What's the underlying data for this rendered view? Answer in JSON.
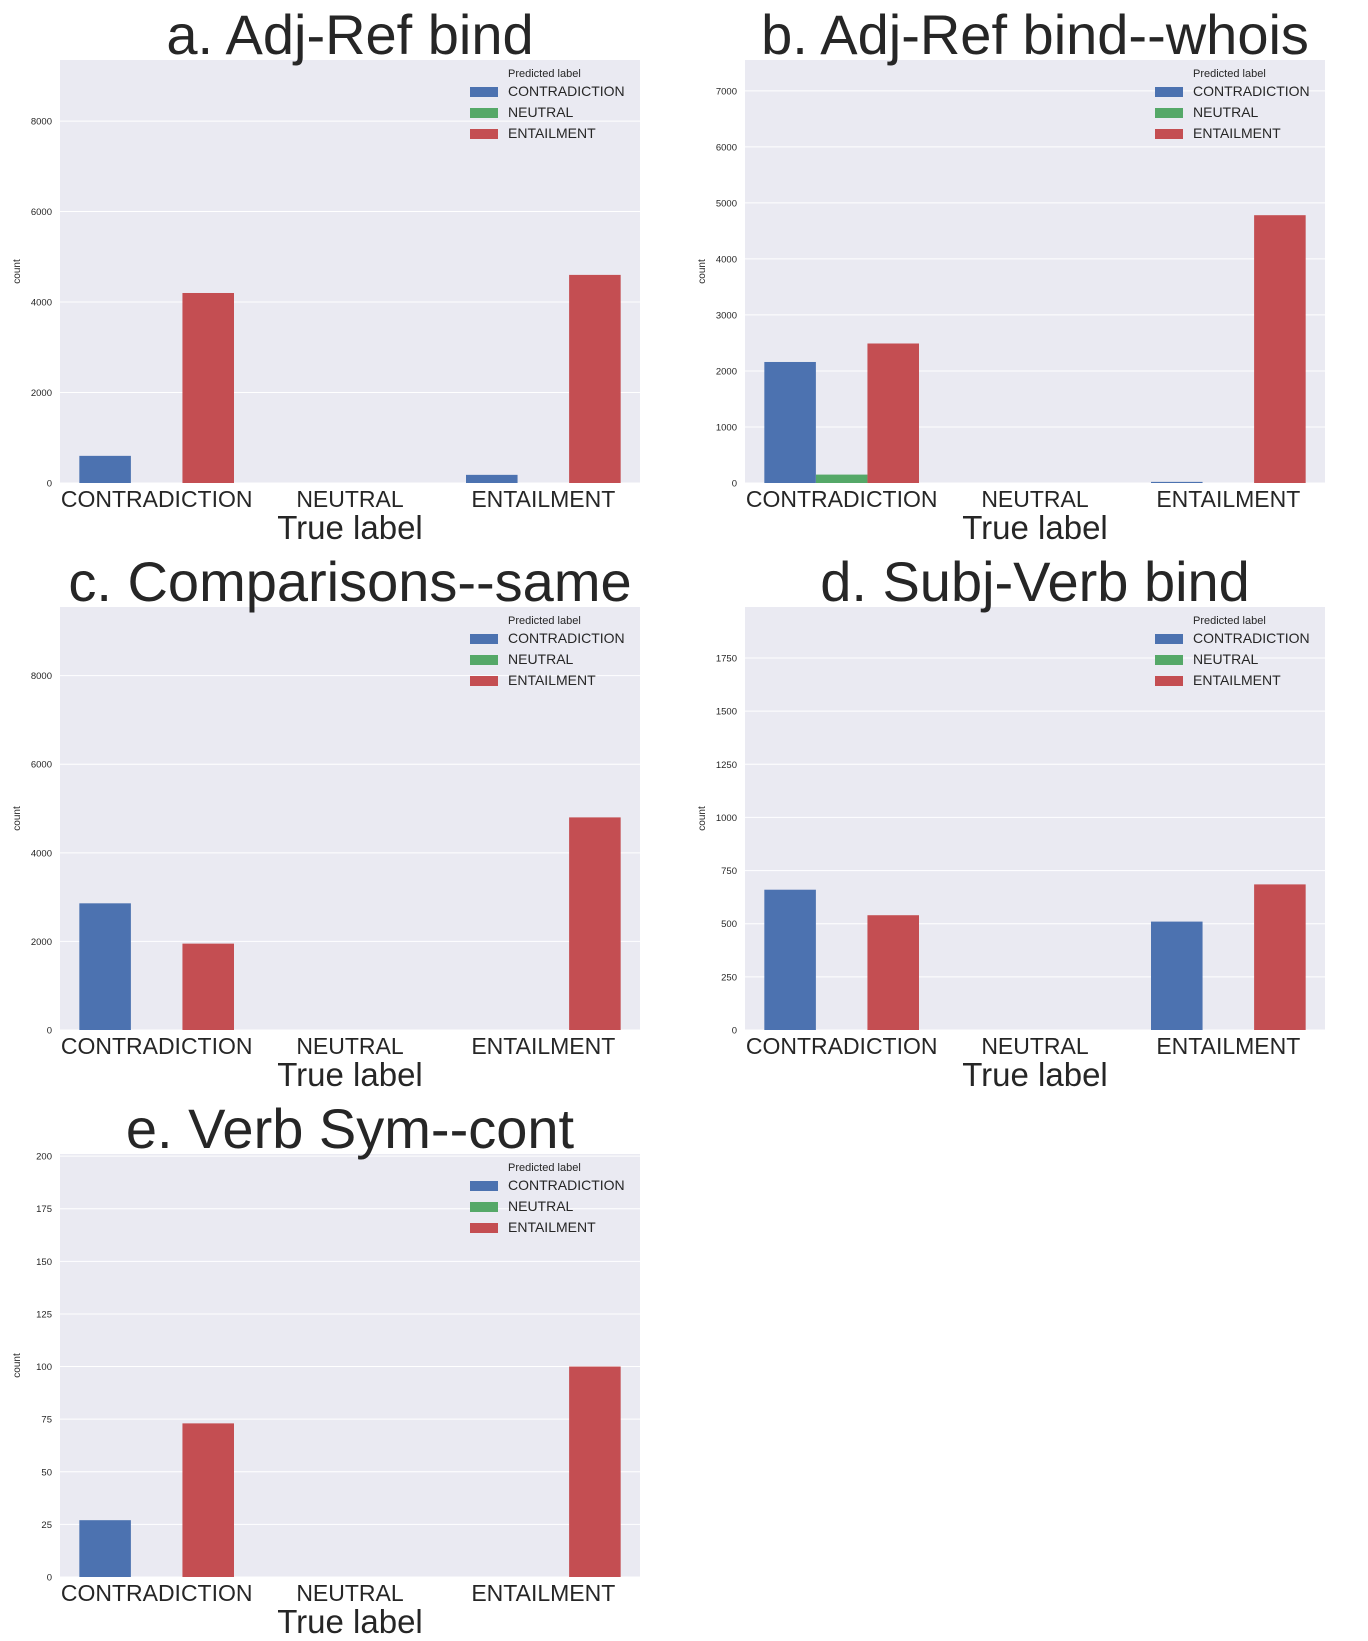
{
  "figure": {
    "colors": {
      "CONTRADICTION": "#4c72b0",
      "NEUTRAL": "#55a868",
      "ENTAILMENT": "#c44e52",
      "panel_bg": "#eaeaf2",
      "grid": "#ffffff"
    }
  },
  "chart_data": [
    {
      "type": "bar",
      "title": "a. Adj-Ref bind",
      "xlabel": "True label",
      "ylabel": "count",
      "categories": [
        "CONTRADICTION",
        "NEUTRAL",
        "ENTAILMENT"
      ],
      "legend_title": "Predicted label",
      "legend_position": "top-right",
      "grid": true,
      "ylim": [
        0,
        9350
      ],
      "yticks": [
        0,
        2000,
        4000,
        6000,
        8000
      ],
      "series": [
        {
          "name": "CONTRADICTION",
          "values": [
            600,
            0,
            180
          ]
        },
        {
          "name": "NEUTRAL",
          "values": [
            0,
            0,
            0
          ]
        },
        {
          "name": "ENTAILMENT",
          "values": [
            4200,
            0,
            4600
          ]
        }
      ]
    },
    {
      "type": "bar",
      "title": "b. Adj-Ref bind--whois",
      "xlabel": "True label",
      "ylabel": "count",
      "categories": [
        "CONTRADICTION",
        "NEUTRAL",
        "ENTAILMENT"
      ],
      "legend_title": "Predicted label",
      "legend_position": "top-right",
      "grid": true,
      "ylim": [
        0,
        7550
      ],
      "yticks": [
        0,
        1000,
        2000,
        3000,
        4000,
        5000,
        6000,
        7000
      ],
      "series": [
        {
          "name": "CONTRADICTION",
          "values": [
            2160,
            0,
            20
          ]
        },
        {
          "name": "NEUTRAL",
          "values": [
            150,
            0,
            0
          ]
        },
        {
          "name": "ENTAILMENT",
          "values": [
            2490,
            0,
            4780
          ]
        }
      ]
    },
    {
      "type": "bar",
      "title": "c. Comparisons--same",
      "xlabel": "True label",
      "ylabel": "count",
      "categories": [
        "CONTRADICTION",
        "NEUTRAL",
        "ENTAILMENT"
      ],
      "legend_title": "Predicted label",
      "legend_position": "top-right",
      "grid": true,
      "ylim": [
        0,
        9550
      ],
      "yticks": [
        0,
        2000,
        4000,
        6000,
        8000
      ],
      "series": [
        {
          "name": "CONTRADICTION",
          "values": [
            2860,
            0,
            0
          ]
        },
        {
          "name": "NEUTRAL",
          "values": [
            0,
            0,
            0
          ]
        },
        {
          "name": "ENTAILMENT",
          "values": [
            1950,
            0,
            4800
          ]
        }
      ]
    },
    {
      "type": "bar",
      "title": "d. Subj-Verb bind",
      "xlabel": "True label",
      "ylabel": "count",
      "categories": [
        "CONTRADICTION",
        "NEUTRAL",
        "ENTAILMENT"
      ],
      "legend_title": "Predicted label",
      "legend_position": "top-right",
      "grid": true,
      "ylim": [
        0,
        1990
      ],
      "yticks": [
        0,
        250,
        500,
        750,
        1000,
        1250,
        1500,
        1750
      ],
      "series": [
        {
          "name": "CONTRADICTION",
          "values": [
            660,
            0,
            510
          ]
        },
        {
          "name": "NEUTRAL",
          "values": [
            0,
            0,
            0
          ]
        },
        {
          "name": "ENTAILMENT",
          "values": [
            540,
            0,
            685
          ]
        }
      ]
    },
    {
      "type": "bar",
      "title": "e. Verb Sym--cont",
      "xlabel": "True label",
      "ylabel": "count",
      "categories": [
        "CONTRADICTION",
        "NEUTRAL",
        "ENTAILMENT"
      ],
      "legend_title": "Predicted label",
      "legend_position": "top-right",
      "grid": true,
      "ylim": [
        0,
        201
      ],
      "yticks": [
        0,
        25,
        50,
        75,
        100,
        125,
        150,
        175,
        200
      ],
      "series": [
        {
          "name": "CONTRADICTION",
          "values": [
            27,
            0,
            0
          ]
        },
        {
          "name": "NEUTRAL",
          "values": [
            0,
            0,
            0
          ]
        },
        {
          "name": "ENTAILMENT",
          "values": [
            73,
            0,
            100
          ]
        }
      ]
    }
  ]
}
